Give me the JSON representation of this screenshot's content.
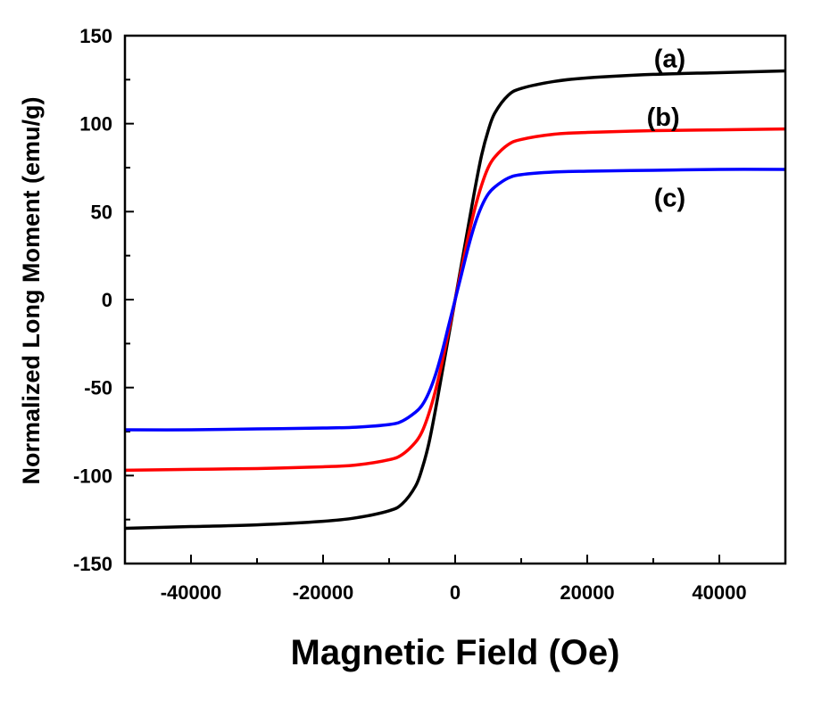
{
  "chart_data": {
    "type": "line",
    "title": "",
    "xlabel": "Magnetic Field (Oe)",
    "ylabel": "Normalized Long Moment (emu/g)",
    "xlim": [
      -50000,
      50000
    ],
    "ylim": [
      -150,
      150
    ],
    "x_ticks": [
      -40000,
      -20000,
      0,
      20000,
      40000
    ],
    "x_tick_labels": [
      "-40000",
      "-20000",
      "0",
      "20000",
      "40000"
    ],
    "y_ticks": [
      -150,
      -100,
      -50,
      0,
      50,
      100,
      150
    ],
    "y_tick_labels": [
      "-150",
      "-100",
      "-50",
      "0",
      "50",
      "100",
      "150"
    ],
    "grid": false,
    "legend": "none",
    "series": [
      {
        "name": "(a)",
        "color": "#000000",
        "x": [
          -50000,
          -40000,
          -30000,
          -20000,
          -15000,
          -10000,
          -8000,
          -6000,
          -5000,
          -4000,
          -3000,
          -2000,
          -1000,
          0,
          1000,
          2000,
          3000,
          4000,
          5000,
          6000,
          8000,
          10000,
          15000,
          20000,
          30000,
          40000,
          50000
        ],
        "y": [
          -130,
          -129,
          -128,
          -126,
          -124,
          -120,
          -116,
          -106,
          -96,
          -82,
          -63,
          -42,
          -21,
          0,
          21,
          42,
          63,
          82,
          96,
          106,
          116,
          120,
          124,
          126,
          128,
          129,
          130
        ]
      },
      {
        "name": "(b)",
        "color": "#ff0000",
        "x": [
          -50000,
          -40000,
          -30000,
          -20000,
          -15000,
          -10000,
          -8000,
          -6000,
          -5000,
          -4000,
          -3000,
          -2000,
          -1000,
          0,
          1000,
          2000,
          3000,
          4000,
          5000,
          6000,
          8000,
          10000,
          15000,
          20000,
          30000,
          40000,
          50000
        ],
        "y": [
          -97,
          -96.5,
          -96,
          -95,
          -94,
          -91,
          -88,
          -81,
          -75,
          -65,
          -52,
          -36,
          -18,
          0,
          18,
          36,
          52,
          65,
          75,
          81,
          88,
          91,
          94,
          95,
          96,
          96.5,
          97
        ]
      },
      {
        "name": "(c)",
        "color": "#0000ff",
        "x": [
          -50000,
          -40000,
          -30000,
          -20000,
          -15000,
          -10000,
          -8000,
          -6000,
          -5000,
          -4000,
          -3000,
          -2000,
          -1000,
          0,
          1000,
          2000,
          3000,
          4000,
          5000,
          6000,
          8000,
          10000,
          15000,
          20000,
          30000,
          40000,
          50000
        ],
        "y": [
          -74,
          -74,
          -73.5,
          -73,
          -72.5,
          -71,
          -69,
          -64,
          -60,
          -53,
          -43,
          -30,
          -15,
          0,
          15,
          30,
          43,
          53,
          60,
          64,
          69,
          71,
          72.5,
          73,
          73.5,
          74,
          74
        ]
      }
    ],
    "annotations": [
      {
        "text": "(a)",
        "x": 32500,
        "y": 137
      },
      {
        "text": "(b)",
        "x": 31500,
        "y": 104
      },
      {
        "text": "(c)",
        "x": 32500,
        "y": 58
      }
    ]
  }
}
